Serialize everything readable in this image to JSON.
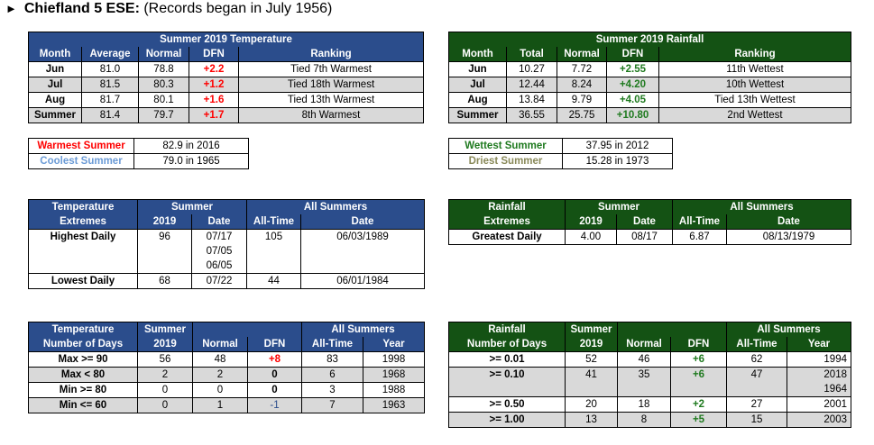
{
  "title": {
    "arrow": "►",
    "station": "Chiefland 5 ESE:",
    "subtitle": " (Records began in July 1956)"
  },
  "temp_summary": {
    "header": "Summer 2019 Temperature",
    "columns": [
      "Month",
      "Average",
      "Normal",
      "DFN",
      "Ranking"
    ],
    "rows": [
      [
        "Jun",
        "81.0",
        "78.8",
        "+2.2",
        "Tied 7th Warmest"
      ],
      [
        "Jul",
        "81.5",
        "80.3",
        "+1.2",
        "Tied 18th Warmest"
      ],
      [
        "Aug",
        "81.7",
        "80.1",
        "+1.6",
        "Tied 13th Warmest"
      ],
      [
        "Summer",
        "81.4",
        "79.7",
        "+1.7",
        "8th Warmest"
      ]
    ]
  },
  "rain_summary": {
    "header": "Summer 2019 Rainfall",
    "columns": [
      "Month",
      "Total",
      "Normal",
      "DFN",
      "Ranking"
    ],
    "rows": [
      [
        "Jun",
        "10.27",
        "7.72",
        "+2.55",
        "11th Wettest"
      ],
      [
        "Jul",
        "12.44",
        "8.24",
        "+4.20",
        "10th Wettest"
      ],
      [
        "Aug",
        "13.84",
        "9.79",
        "+4.05",
        "Tied 13th Wettest"
      ],
      [
        "Summer",
        "36.55",
        "25.75",
        "+10.80",
        "2nd Wettest"
      ]
    ]
  },
  "temp_records": {
    "warmest_label": "Warmest Summer",
    "warmest_value": "82.9 in 2016",
    "coolest_label": "Coolest Summer",
    "coolest_value": "79.0 in 1965"
  },
  "rain_records": {
    "wettest_label": "Wettest Summer",
    "wettest_value": "37.95 in 2012",
    "driest_label": "Driest Summer",
    "driest_value": "15.28 in 1973"
  },
  "temp_extremes": {
    "h1": "Temperature",
    "h2": "Extremes",
    "summer": "Summer",
    "all": "All Summers",
    "c_2019": "2019",
    "c_date": "Date",
    "c_alltime": "All-Time",
    "c_date2": "Date",
    "highest": {
      "label": "Highest Daily",
      "value": "96",
      "dates": [
        "07/17",
        "07/05",
        "06/05"
      ],
      "alltime": "105",
      "alldate": "06/03/1989"
    },
    "lowest": {
      "label": "Lowest Daily",
      "value": "68",
      "date": "07/22",
      "alltime": "44",
      "alldate": "06/01/1984"
    }
  },
  "rain_extremes": {
    "h1": "Rainfall",
    "h2": "Extremes",
    "summer": "Summer",
    "all": "All Summers",
    "c_2019": "2019",
    "c_date": "Date",
    "c_alltime": "All-Time",
    "c_date2": "Date",
    "greatest": {
      "label": "Greatest Daily",
      "value": "4.00",
      "date": "08/17",
      "alltime": "6.87",
      "alldate": "08/13/1979"
    }
  },
  "temp_days": {
    "h1": "Temperature",
    "h2": "Number of Days",
    "summer": "Summer",
    "all": "All Summers",
    "c_2019": "2019",
    "c_normal": "Normal",
    "c_dfn": "DFN",
    "c_alltime": "All-Time",
    "c_year": "Year",
    "rows": [
      [
        "Max >= 90",
        "56",
        "48",
        "+8",
        "83",
        "1998"
      ],
      [
        "Max < 80",
        "2",
        "2",
        "0",
        "6",
        "1968"
      ],
      [
        "Min >= 80",
        "0",
        "0",
        "0",
        "3",
        "1988"
      ],
      [
        "Min <= 60",
        "0",
        "1",
        "-1",
        "7",
        "1963"
      ]
    ]
  },
  "rain_days": {
    "h1": "Rainfall",
    "h2": "Number of Days",
    "summer": "Summer",
    "all": "All Summers",
    "c_2019": "2019",
    "c_normal": "Normal",
    "c_dfn": "DFN",
    "c_alltime": "All-Time",
    "c_year": "Year",
    "rows": [
      [
        ">= 0.01",
        "52",
        "46",
        "+6",
        "62",
        "1994"
      ],
      [
        ">= 0.10",
        "41",
        "35",
        "+6",
        "47",
        "2018"
      ],
      [
        "",
        "",
        "",
        "",
        "",
        "1964"
      ],
      [
        ">= 0.50",
        "20",
        "18",
        "+2",
        "27",
        "2001"
      ],
      [
        ">= 1.00",
        "13",
        "8",
        "+5",
        "15",
        "2003"
      ]
    ]
  },
  "colors": {
    "temp_header": "#2b4d8c",
    "rain_header": "#145214",
    "shade": "#d9d9d9",
    "warm": "#ff0000",
    "wet": "#1f7a1f"
  }
}
